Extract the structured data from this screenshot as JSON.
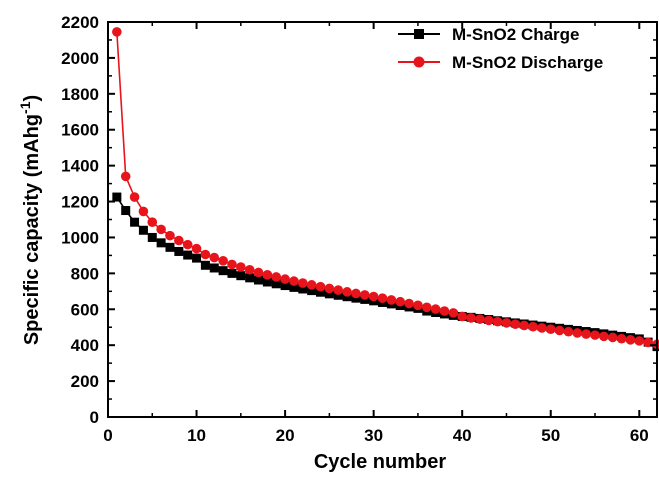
{
  "chart_data": {
    "type": "line",
    "title": "",
    "xlabel": "Cycle number",
    "ylabel": "Specific capacity (mAhg",
    "ylabel_superscript": "-1",
    "ylabel_suffix": ")",
    "xlim": [
      0,
      62
    ],
    "ylim": [
      0,
      2200
    ],
    "xticks": [
      0,
      10,
      20,
      30,
      40,
      50,
      60
    ],
    "yticks": [
      0,
      200,
      400,
      600,
      800,
      1000,
      1200,
      1400,
      1600,
      1800,
      2000,
      2200
    ],
    "grid": false,
    "legend_position": "top-right",
    "x": [
      1,
      2,
      3,
      4,
      5,
      6,
      7,
      8,
      9,
      10,
      11,
      12,
      13,
      14,
      15,
      16,
      17,
      18,
      19,
      20,
      21,
      22,
      23,
      24,
      25,
      26,
      27,
      28,
      29,
      30,
      31,
      32,
      33,
      34,
      35,
      36,
      37,
      38,
      39,
      40,
      41,
      42,
      43,
      44,
      45,
      46,
      47,
      48,
      49,
      50,
      51,
      52,
      53,
      54,
      55,
      56,
      57,
      58,
      59,
      60,
      61,
      62
    ],
    "series": [
      {
        "name": "M-SnO2 Charge",
        "color": "#000000",
        "marker": "square",
        "values": [
          1225,
          1150,
          1085,
          1040,
          1000,
          970,
          945,
          922,
          902,
          885,
          845,
          830,
          815,
          800,
          787,
          775,
          763,
          752,
          742,
          732,
          722,
          713,
          704,
          695,
          686,
          678,
          670,
          662,
          655,
          647,
          638,
          630,
          621,
          613,
          605,
          590,
          582,
          574,
          566,
          560,
          555,
          549,
          543,
          536,
          530,
          524,
          518,
          512,
          506,
          500,
          494,
          488,
          482,
          476,
          470,
          463,
          456,
          449,
          442,
          435,
          417,
          392
        ]
      },
      {
        "name": "M-SnO2 Discharge",
        "color": "#e8141c",
        "marker": "circle",
        "values": [
          2145,
          1340,
          1225,
          1145,
          1085,
          1045,
          1010,
          983,
          960,
          938,
          905,
          888,
          870,
          850,
          835,
          820,
          805,
          792,
          780,
          768,
          757,
          746,
          736,
          726,
          716,
          707,
          697,
          688,
          680,
          671,
          662,
          652,
          642,
          632,
          622,
          611,
          601,
          590,
          580,
          560,
          552,
          545,
          538,
          531,
          524,
          517,
          510,
          503,
          496,
          489,
          482,
          475,
          468,
          462,
          456,
          449,
          443,
          436,
          430,
          424,
          415,
          405
        ]
      }
    ]
  }
}
